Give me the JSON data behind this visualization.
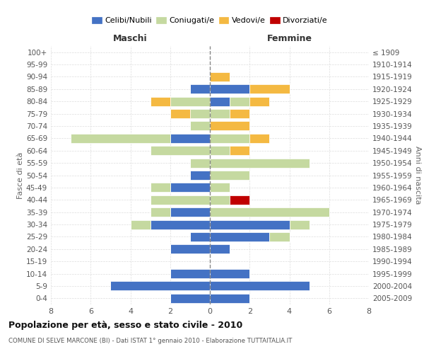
{
  "age_groups": [
    "0-4",
    "5-9",
    "10-14",
    "15-19",
    "20-24",
    "25-29",
    "30-34",
    "35-39",
    "40-44",
    "45-49",
    "50-54",
    "55-59",
    "60-64",
    "65-69",
    "70-74",
    "75-79",
    "80-84",
    "85-89",
    "90-94",
    "95-99",
    "100+"
  ],
  "birth_years": [
    "2005-2009",
    "2000-2004",
    "1995-1999",
    "1990-1994",
    "1985-1989",
    "1980-1984",
    "1975-1979",
    "1970-1974",
    "1965-1969",
    "1960-1964",
    "1955-1959",
    "1950-1954",
    "1945-1949",
    "1940-1944",
    "1935-1939",
    "1930-1934",
    "1925-1929",
    "1920-1924",
    "1915-1919",
    "1910-1914",
    "≤ 1909"
  ],
  "male": {
    "celibi": [
      2,
      5,
      2,
      0,
      2,
      1,
      3,
      2,
      0,
      2,
      1,
      0,
      0,
      2,
      0,
      0,
      0,
      1,
      0,
      0,
      0
    ],
    "coniugati": [
      0,
      0,
      0,
      0,
      0,
      0,
      1,
      1,
      3,
      1,
      0,
      1,
      3,
      5,
      1,
      1,
      2,
      0,
      0,
      0,
      0
    ],
    "vedovi": [
      0,
      0,
      0,
      0,
      0,
      0,
      0,
      0,
      0,
      0,
      0,
      0,
      0,
      0,
      0,
      1,
      1,
      0,
      0,
      0,
      0
    ],
    "divorziati": [
      0,
      0,
      0,
      0,
      0,
      0,
      0,
      0,
      0,
      0,
      0,
      0,
      0,
      0,
      0,
      0,
      0,
      0,
      0,
      0,
      0
    ]
  },
  "female": {
    "celibi": [
      2,
      5,
      2,
      0,
      1,
      3,
      4,
      0,
      0,
      0,
      0,
      0,
      0,
      0,
      0,
      0,
      1,
      2,
      0,
      0,
      0
    ],
    "coniugati": [
      0,
      0,
      0,
      0,
      0,
      1,
      1,
      6,
      1,
      1,
      2,
      5,
      1,
      2,
      0,
      1,
      1,
      0,
      0,
      0,
      0
    ],
    "vedovi": [
      0,
      0,
      0,
      0,
      0,
      0,
      0,
      0,
      0,
      0,
      0,
      0,
      1,
      1,
      2,
      1,
      1,
      2,
      1,
      0,
      0
    ],
    "divorziati": [
      0,
      0,
      0,
      0,
      0,
      0,
      0,
      0,
      1,
      0,
      0,
      0,
      0,
      0,
      0,
      0,
      0,
      0,
      0,
      0,
      0
    ]
  },
  "colors": {
    "celibi": "#4472c4",
    "coniugati": "#c5d9a0",
    "vedovi": "#f4b942",
    "divorziati": "#c00000"
  },
  "xlim": 8,
  "title": "Popolazione per età, sesso e stato civile - 2010",
  "subtitle": "COMUNE DI SELVE MARCONE (BI) - Dati ISTAT 1° gennaio 2010 - Elaborazione TUTTAITALIA.IT",
  "ylabel_left": "Fasce di età",
  "ylabel_right": "Anni di nascita",
  "xlabel_left": "Maschi",
  "xlabel_right": "Femmine",
  "legend_labels": [
    "Celibi/Nubili",
    "Coniugati/e",
    "Vedovi/e",
    "Divorziati/e"
  ],
  "bg_color": "#ffffff"
}
